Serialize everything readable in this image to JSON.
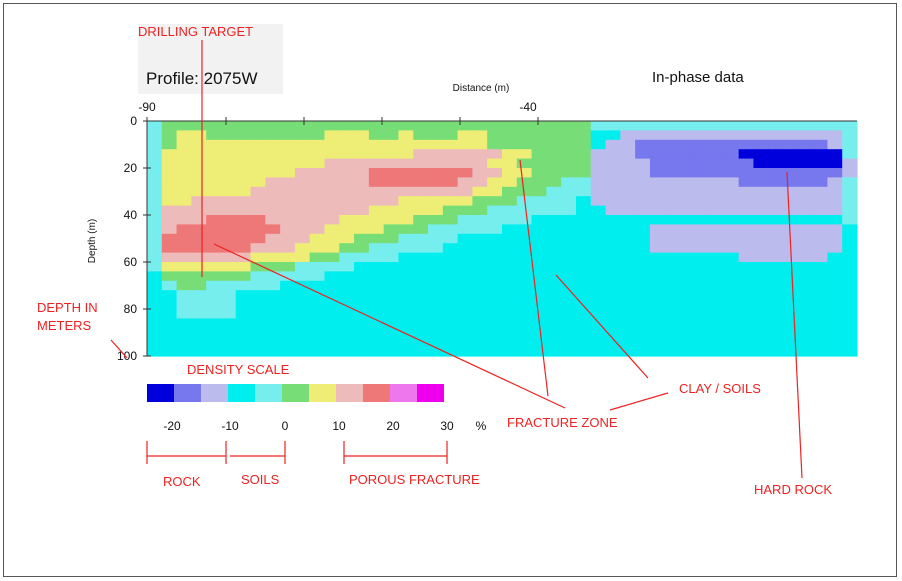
{
  "chart_data": {
    "type": "heatmap",
    "title": "Profile: 2075W",
    "dataset_label": "In-phase data",
    "xlabel": "Distance (m)",
    "ylabel": "Depth (m)",
    "x_ticks": [
      "-90",
      "-40"
    ],
    "x_tick_values": [
      -90,
      -40
    ],
    "xlim": [
      -90,
      0
    ],
    "y_ticks": [
      "0",
      "20",
      "40",
      "60",
      "80",
      "100"
    ],
    "y_tick_values": [
      0,
      20,
      40,
      60,
      80,
      100
    ],
    "ylim": [
      0,
      100
    ],
    "grid": false,
    "legend": {
      "title": "DENSITY SCALE",
      "swatch_colors": [
        "#0000dd",
        "#7777ee",
        "#bbbbee",
        "#00eeee",
        "#77eeee",
        "#77dd77",
        "#eeee77",
        "#eebbbb",
        "#ee7777",
        "#ee77ee",
        "#ee00ee"
      ],
      "tick_labels": [
        "-20",
        "-10",
        "0",
        "10",
        "20",
        "30"
      ],
      "unit": "%"
    },
    "class_colors": {
      "1": "#0000dd",
      "2": "#7777ee",
      "3": "#bbbbee",
      "4": "#00eeee",
      "5": "#77eeee",
      "6": "#77dd77",
      "7": "#eeee77",
      "8": "#eebbbb",
      "9": "#ee7777"
    },
    "grid_values": [
      [
        5,
        6,
        6,
        6,
        6,
        6,
        6,
        6,
        6,
        6,
        6,
        6,
        6,
        6,
        6,
        6,
        6,
        6,
        6,
        6,
        6,
        6,
        6,
        6,
        6,
        6,
        6,
        6,
        6,
        6,
        5,
        5,
        5,
        5,
        5,
        5,
        5,
        5,
        5,
        5,
        5,
        5,
        5,
        5,
        5,
        5,
        5,
        5
      ],
      [
        5,
        6,
        7,
        7,
        6,
        6,
        6,
        6,
        6,
        6,
        6,
        6,
        7,
        7,
        7,
        6,
        6,
        7,
        6,
        6,
        6,
        7,
        7,
        6,
        6,
        6,
        6,
        6,
        6,
        6,
        4,
        4,
        3,
        3,
        3,
        3,
        3,
        3,
        3,
        3,
        3,
        3,
        3,
        3,
        3,
        3,
        3,
        5
      ],
      [
        5,
        6,
        7,
        7,
        7,
        7,
        7,
        7,
        7,
        7,
        7,
        7,
        7,
        7,
        7,
        7,
        7,
        7,
        7,
        7,
        7,
        7,
        7,
        6,
        6,
        6,
        6,
        6,
        6,
        6,
        4,
        3,
        3,
        2,
        2,
        2,
        2,
        2,
        2,
        2,
        2,
        2,
        2,
        2,
        2,
        2,
        3,
        5
      ],
      [
        5,
        7,
        7,
        7,
        7,
        7,
        7,
        7,
        7,
        7,
        7,
        7,
        7,
        7,
        7,
        7,
        7,
        7,
        8,
        8,
        8,
        8,
        8,
        8,
        7,
        7,
        6,
        6,
        6,
        6,
        3,
        3,
        3,
        2,
        2,
        2,
        2,
        2,
        2,
        2,
        1,
        1,
        1,
        1,
        1,
        1,
        1,
        5
      ],
      [
        5,
        7,
        7,
        7,
        7,
        7,
        7,
        7,
        7,
        7,
        7,
        7,
        8,
        8,
        8,
        8,
        8,
        8,
        8,
        8,
        8,
        8,
        8,
        7,
        7,
        6,
        6,
        6,
        6,
        6,
        3,
        3,
        3,
        3,
        2,
        2,
        2,
        2,
        2,
        2,
        2,
        1,
        1,
        1,
        1,
        1,
        1,
        3
      ],
      [
        5,
        7,
        7,
        7,
        7,
        7,
        7,
        7,
        7,
        7,
        8,
        8,
        8,
        8,
        8,
        9,
        9,
        9,
        9,
        9,
        9,
        9,
        8,
        8,
        7,
        7,
        6,
        6,
        6,
        6,
        3,
        3,
        3,
        3,
        2,
        2,
        2,
        2,
        2,
        2,
        2,
        2,
        2,
        2,
        2,
        2,
        2,
        3
      ],
      [
        5,
        7,
        7,
        7,
        7,
        7,
        7,
        7,
        8,
        8,
        8,
        8,
        8,
        8,
        8,
        9,
        9,
        9,
        9,
        9,
        9,
        8,
        8,
        7,
        7,
        6,
        6,
        6,
        5,
        5,
        3,
        3,
        3,
        3,
        3,
        3,
        3,
        3,
        3,
        3,
        2,
        2,
        2,
        2,
        2,
        2,
        3,
        5
      ],
      [
        5,
        7,
        7,
        7,
        7,
        7,
        7,
        8,
        8,
        8,
        8,
        8,
        8,
        8,
        8,
        8,
        8,
        8,
        8,
        8,
        8,
        8,
        7,
        7,
        6,
        6,
        6,
        5,
        5,
        5,
        3,
        3,
        3,
        3,
        3,
        3,
        3,
        3,
        3,
        3,
        3,
        3,
        3,
        3,
        3,
        3,
        3,
        5
      ],
      [
        5,
        7,
        7,
        8,
        8,
        8,
        8,
        8,
        8,
        8,
        8,
        8,
        8,
        8,
        8,
        8,
        8,
        7,
        7,
        7,
        7,
        7,
        6,
        6,
        6,
        5,
        5,
        5,
        5,
        4,
        3,
        3,
        3,
        3,
        3,
        3,
        3,
        3,
        3,
        3,
        3,
        3,
        3,
        3,
        3,
        3,
        3,
        5
      ],
      [
        5,
        8,
        8,
        8,
        8,
        8,
        8,
        8,
        8,
        8,
        8,
        8,
        8,
        8,
        8,
        7,
        7,
        7,
        7,
        7,
        6,
        6,
        6,
        5,
        5,
        5,
        5,
        5,
        5,
        4,
        4,
        3,
        3,
        3,
        3,
        3,
        3,
        3,
        3,
        3,
        3,
        3,
        3,
        3,
        3,
        3,
        3,
        5
      ],
      [
        5,
        8,
        8,
        8,
        9,
        9,
        9,
        9,
        8,
        8,
        8,
        8,
        8,
        7,
        7,
        7,
        7,
        7,
        6,
        6,
        6,
        5,
        5,
        5,
        5,
        5,
        4,
        4,
        4,
        4,
        4,
        4,
        4,
        4,
        4,
        4,
        4,
        4,
        4,
        4,
        4,
        4,
        4,
        4,
        4,
        4,
        4,
        5
      ],
      [
        5,
        8,
        9,
        9,
        9,
        9,
        9,
        9,
        9,
        8,
        8,
        8,
        7,
        7,
        7,
        7,
        6,
        6,
        6,
        5,
        5,
        5,
        5,
        5,
        4,
        4,
        4,
        4,
        4,
        4,
        4,
        4,
        4,
        4,
        3,
        3,
        3,
        3,
        3,
        3,
        3,
        3,
        3,
        3,
        3,
        3,
        3,
        4
      ],
      [
        5,
        9,
        9,
        9,
        9,
        9,
        9,
        9,
        8,
        8,
        8,
        7,
        7,
        7,
        6,
        6,
        6,
        5,
        5,
        5,
        5,
        4,
        4,
        4,
        4,
        4,
        4,
        4,
        4,
        4,
        4,
        4,
        4,
        4,
        3,
        3,
        3,
        3,
        3,
        3,
        3,
        3,
        3,
        3,
        3,
        3,
        3,
        4
      ],
      [
        5,
        9,
        9,
        9,
        9,
        9,
        9,
        8,
        8,
        8,
        7,
        7,
        7,
        6,
        6,
        5,
        5,
        5,
        5,
        5,
        4,
        4,
        4,
        4,
        4,
        4,
        4,
        4,
        4,
        4,
        4,
        4,
        4,
        4,
        3,
        3,
        3,
        3,
        3,
        3,
        3,
        3,
        3,
        3,
        3,
        3,
        3,
        4
      ],
      [
        5,
        8,
        8,
        8,
        8,
        8,
        8,
        7,
        7,
        7,
        7,
        6,
        6,
        5,
        5,
        5,
        5,
        4,
        4,
        4,
        4,
        4,
        4,
        4,
        4,
        4,
        4,
        4,
        4,
        4,
        4,
        4,
        4,
        4,
        4,
        4,
        4,
        4,
        4,
        4,
        3,
        3,
        3,
        3,
        3,
        3,
        4,
        4
      ],
      [
        5,
        7,
        7,
        7,
        7,
        7,
        7,
        6,
        6,
        6,
        5,
        5,
        5,
        5,
        4,
        4,
        4,
        4,
        4,
        4,
        4,
        4,
        4,
        4,
        4,
        4,
        4,
        4,
        4,
        4,
        4,
        4,
        4,
        4,
        4,
        4,
        4,
        4,
        4,
        4,
        4,
        4,
        4,
        4,
        4,
        4,
        4,
        4
      ],
      [
        4,
        6,
        6,
        6,
        6,
        6,
        6,
        5,
        5,
        5,
        5,
        5,
        4,
        4,
        4,
        4,
        4,
        4,
        4,
        4,
        4,
        4,
        4,
        4,
        4,
        4,
        4,
        4,
        4,
        4,
        4,
        4,
        4,
        4,
        4,
        4,
        4,
        4,
        4,
        4,
        4,
        4,
        4,
        4,
        4,
        4,
        4,
        4
      ],
      [
        4,
        5,
        6,
        6,
        5,
        5,
        5,
        5,
        5,
        4,
        4,
        4,
        4,
        4,
        4,
        4,
        4,
        4,
        4,
        4,
        4,
        4,
        4,
        4,
        4,
        4,
        4,
        4,
        4,
        4,
        4,
        4,
        4,
        4,
        4,
        4,
        4,
        4,
        4,
        4,
        4,
        4,
        4,
        4,
        4,
        4,
        4,
        4
      ],
      [
        4,
        4,
        5,
        5,
        5,
        5,
        4,
        4,
        4,
        4,
        4,
        4,
        4,
        4,
        4,
        4,
        4,
        4,
        4,
        4,
        4,
        4,
        4,
        4,
        4,
        4,
        4,
        4,
        4,
        4,
        4,
        4,
        4,
        4,
        4,
        4,
        4,
        4,
        4,
        4,
        4,
        4,
        4,
        4,
        4,
        4,
        4,
        4
      ],
      [
        4,
        4,
        5,
        5,
        5,
        5,
        4,
        4,
        4,
        4,
        4,
        4,
        4,
        4,
        4,
        4,
        4,
        4,
        4,
        4,
        4,
        4,
        4,
        4,
        4,
        4,
        4,
        4,
        4,
        4,
        4,
        4,
        4,
        4,
        4,
        4,
        4,
        4,
        4,
        4,
        4,
        4,
        4,
        4,
        4,
        4,
        4,
        4
      ],
      [
        4,
        4,
        5,
        5,
        5,
        5,
        4,
        4,
        4,
        4,
        4,
        4,
        4,
        4,
        4,
        4,
        4,
        4,
        4,
        4,
        4,
        4,
        4,
        4,
        4,
        4,
        4,
        4,
        4,
        4,
        4,
        4,
        4,
        4,
        4,
        4,
        4,
        4,
        4,
        4,
        4,
        4,
        4,
        4,
        4,
        4,
        4,
        4
      ],
      [
        4,
        4,
        4,
        4,
        4,
        4,
        4,
        4,
        4,
        4,
        4,
        4,
        4,
        4,
        4,
        4,
        4,
        4,
        4,
        4,
        4,
        4,
        4,
        4,
        4,
        4,
        4,
        4,
        4,
        4,
        4,
        4,
        4,
        4,
        4,
        4,
        4,
        4,
        4,
        4,
        4,
        4,
        4,
        4,
        4,
        4,
        4,
        4
      ],
      [
        4,
        4,
        4,
        4,
        4,
        4,
        4,
        4,
        4,
        4,
        4,
        4,
        4,
        4,
        4,
        4,
        4,
        4,
        4,
        4,
        4,
        4,
        4,
        4,
        4,
        4,
        4,
        4,
        4,
        4,
        4,
        4,
        4,
        4,
        4,
        4,
        4,
        4,
        4,
        4,
        4,
        4,
        4,
        4,
        4,
        4,
        4,
        4
      ],
      [
        4,
        4,
        4,
        4,
        4,
        4,
        4,
        4,
        4,
        4,
        4,
        4,
        4,
        4,
        4,
        4,
        4,
        4,
        4,
        4,
        4,
        4,
        4,
        4,
        4,
        4,
        4,
        4,
        4,
        4,
        4,
        4,
        4,
        4,
        4,
        4,
        4,
        4,
        4,
        4,
        4,
        4,
        4,
        4,
        4,
        4,
        4,
        4
      ],
      [
        4,
        4,
        4,
        4,
        4,
        4,
        4,
        4,
        4,
        4,
        4,
        4,
        4,
        4,
        4,
        4,
        4,
        4,
        4,
        4,
        4,
        4,
        4,
        4,
        4,
        4,
        4,
        4,
        4,
        4,
        4,
        4,
        4,
        4,
        4,
        4,
        4,
        4,
        4,
        4,
        4,
        4,
        4,
        4,
        4,
        4,
        4,
        4
      ]
    ]
  },
  "annotations": {
    "drilling_target": "DRILLING TARGET",
    "depth_in": "DEPTH IN",
    "meters": "METERS",
    "fracture_zone": "FRACTURE ZONE",
    "clay_soils": "CLAY / SOILS",
    "hard_rock": "HARD ROCK",
    "rock": "ROCK",
    "soils": "SOILS",
    "porous_fracture": "POROUS FRACTURE"
  }
}
